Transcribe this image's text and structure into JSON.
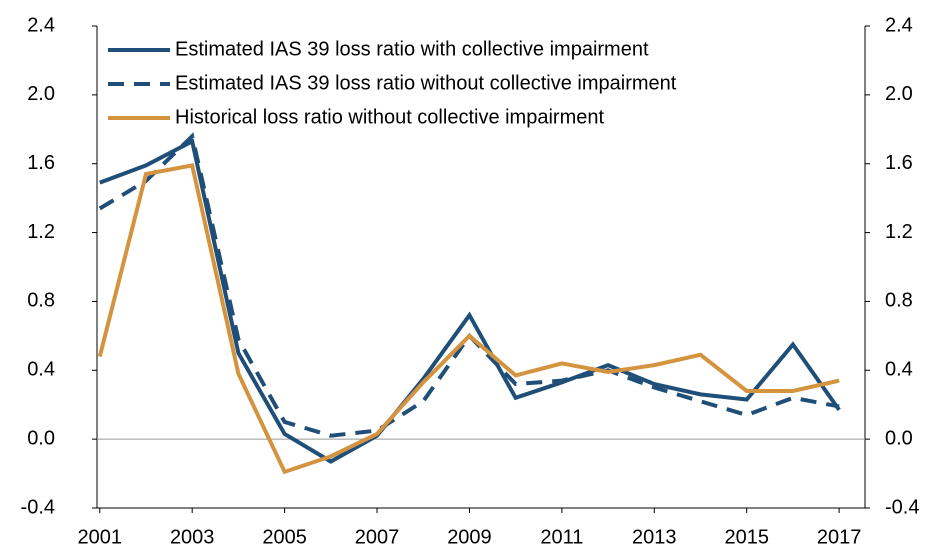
{
  "chart_data": {
    "type": "line",
    "x": [
      2001,
      2002,
      2003,
      2004,
      2005,
      2006,
      2007,
      2008,
      2009,
      2010,
      2011,
      2012,
      2013,
      2014,
      2015,
      2016,
      2017
    ],
    "series": [
      {
        "name": "Estimated IAS 39 loss ratio with collective impairment",
        "color": "#1f4e79",
        "dash": false,
        "values": [
          1.49,
          1.59,
          1.73,
          0.5,
          0.03,
          -0.13,
          0.02,
          0.35,
          0.72,
          0.24,
          0.33,
          0.43,
          0.32,
          0.26,
          0.23,
          0.55,
          0.17
        ]
      },
      {
        "name": "Estimated IAS 39 loss ratio without collective impairment",
        "color": "#1f4e79",
        "dash": true,
        "values": [
          1.34,
          1.5,
          1.76,
          0.58,
          0.1,
          0.02,
          0.05,
          0.22,
          0.6,
          0.32,
          0.34,
          0.4,
          0.3,
          0.22,
          0.14,
          0.24,
          0.19
        ]
      },
      {
        "name": "Historical loss ratio without collective impairment",
        "color": "#d4933f",
        "dash": false,
        "values": [
          0.48,
          1.54,
          1.59,
          0.38,
          -0.19,
          -0.1,
          0.03,
          0.33,
          0.6,
          0.37,
          0.44,
          0.39,
          0.43,
          0.49,
          0.28,
          0.28,
          0.34
        ]
      }
    ],
    "xlim": [
      2000.94,
      2017.56
    ],
    "xticks": [
      2001,
      2003,
      2005,
      2007,
      2009,
      2011,
      2013,
      2015,
      2017
    ],
    "ylim": [
      -0.4,
      2.4
    ],
    "yticks": [
      -0.4,
      {
        "value": 0,
        "label": "0.0"
      },
      0.4,
      0.8,
      1.2,
      1.6,
      {
        "value": 2,
        "label": "2.0"
      },
      2.4
    ],
    "y2lim": [
      -0.4,
      2.4
    ],
    "y2ticks": [
      -0.4,
      {
        "value": 0,
        "label": "0.0"
      },
      0.4,
      0.8,
      1.2,
      1.6,
      {
        "value": 2,
        "label": "2.0"
      },
      2.4
    ],
    "legend": "top-left"
  }
}
